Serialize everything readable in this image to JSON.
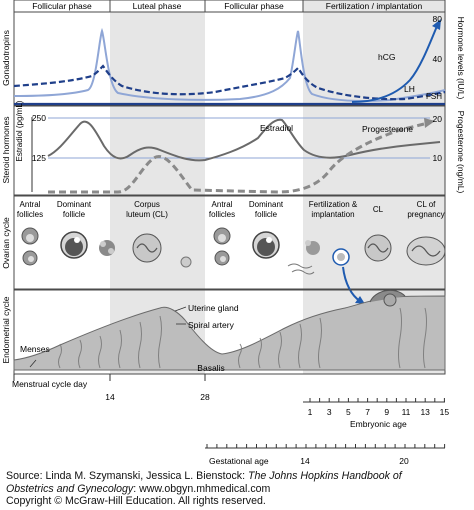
{
  "phases": [
    "Follicular phase",
    "Luteal phase",
    "Follicular phase",
    "Fertilization / implantation"
  ],
  "panels": {
    "gonadotropins": "Gonadotropins",
    "steroid": "Steroid hormones",
    "ovarian": "Ovarian cycle",
    "endometrial": "Endometrial cycle"
  },
  "left_axis": {
    "label": "Estradiol (pg/mL)",
    "ticks": [
      "250",
      "125"
    ]
  },
  "right_axis_top": {
    "label": "Hormone levels (IU/L)",
    "ticks": [
      "80",
      "40"
    ]
  },
  "right_axis_mid": {
    "label": "Progesterone (ng/mL)",
    "ticks": [
      "20",
      "10"
    ]
  },
  "curve_labels": {
    "hcg": "hCG",
    "lh": "LH",
    "fsh": "FSH",
    "estradiol": "Estradiol",
    "progesterone": "Progesterone"
  },
  "ovarian_labels": {
    "antral1": "Antral\nfollicles",
    "dominant1": "Dominant\nfollicle",
    "corpus": "Corpus\nluteum (CL)",
    "antral2": "Antral\nfollicles",
    "dominant2": "Dominant\nfollicle",
    "fertilization": "Fertilization &\nimplantation",
    "cl": "CL",
    "clp": "CL of\npregnancy"
  },
  "endometrial_labels": {
    "uterine_gland": "Uterine gland",
    "spiral_artery": "Spiral artery",
    "menses": "Menses",
    "basalis": "Basalis"
  },
  "menstrual_axis": {
    "label": "Menstrual cycle day",
    "ticks": [
      "14",
      "28"
    ]
  },
  "embryonic_axis": {
    "label": "Embryonic age",
    "ticks": [
      "1",
      "3",
      "5",
      "7",
      "9",
      "11",
      "13",
      "15"
    ]
  },
  "gestational_axis": {
    "label": "Gestational age",
    "ticks": [
      "14",
      "20"
    ]
  },
  "caption": {
    "line1_prefix": "Source: Linda M. Szymanski, Jessica L. Bienstock: ",
    "line1_title": "The Johns Hopkins Handbook of",
    "line2_title": "Obstetrics and Gynecology",
    "line2_rest": ": www.obgyn.mhmedical.com",
    "line3": "Copyright © McGraw-Hill Education. All rights reserved."
  },
  "colors": {
    "line_blue": "#8fa6d6",
    "dash_navy": "#1f3f8a",
    "hcg_blue": "#1f5bb0",
    "panel_border": "#4a4a4a",
    "shade": "#e6e6e6",
    "grey_curve": "#6a6a6a",
    "dash_grey": "#8a8a8a"
  }
}
